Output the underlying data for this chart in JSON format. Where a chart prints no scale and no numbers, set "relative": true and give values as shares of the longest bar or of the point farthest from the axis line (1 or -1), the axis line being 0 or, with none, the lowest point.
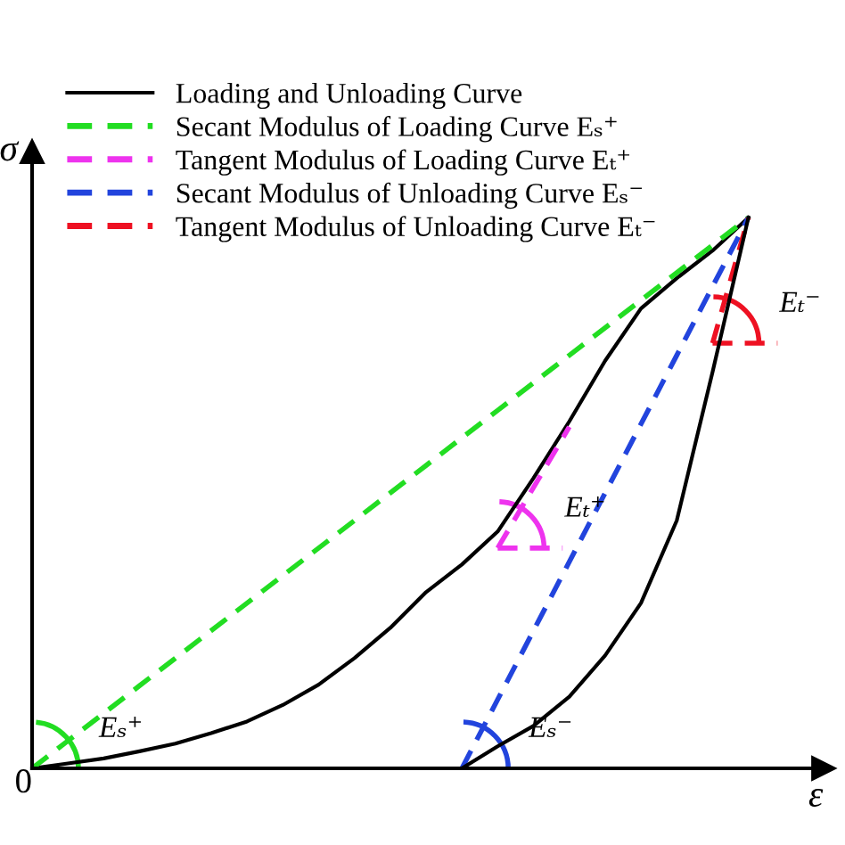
{
  "chart_data": {
    "type": "line",
    "relative": true,
    "xlabel": "ε",
    "ylabel": "σ",
    "legend": "top left",
    "marker": "none",
    "categories": [
      null,
      null,
      null,
      null,
      null,
      null,
      null,
      null,
      null,
      null,
      null,
      null,
      null,
      null,
      null,
      null,
      null,
      null,
      null,
      null,
      null
    ],
    "series": [
      {
        "name": "Loading and Unloading Curve",
        "color": "#000000",
        "line_style": "solid",
        "values": [
          0,
          0.009,
          0.018,
          0.031,
          0.045,
          0.064,
          0.085,
          0.115,
          0.152,
          0.2,
          0.255,
          0.32,
          0.37,
          0.43,
          0.527,
          0.63,
          0.74,
          0.835,
          0.89,
          0.94,
          1
        ]
      },
      {
        "name": "Secant Modulus of Loading Curve Eₛ⁺",
        "color": "#22dd22",
        "line_style": "dashed",
        "values": [
          0,
          0.05,
          0.1,
          0.15,
          0.2,
          0.25,
          0.3,
          0.35,
          0.4,
          0.45,
          0.5,
          0.55,
          0.6,
          0.65,
          0.7,
          0.75,
          0.8,
          0.85,
          0.9,
          0.95,
          1
        ]
      },
      {
        "name": "Tangent Modulus of Loading Curve Eₜ⁺",
        "color": "#ee33ee",
        "line_style": "dashed",
        "values": [
          null,
          null,
          null,
          null,
          null,
          null,
          null,
          null,
          null,
          null,
          null,
          null,
          null,
          0.4,
          0.51,
          0.62,
          null,
          null,
          null,
          null,
          null
        ]
      },
      {
        "name": "Secant Modulus of Unloading Curve Eₛ⁻",
        "color": "#2244dd",
        "line_style": "dashed",
        "values": [
          null,
          null,
          null,
          null,
          null,
          null,
          null,
          null,
          null,
          null,
          null,
          null,
          0,
          0.125,
          0.25,
          0.375,
          0.5,
          0.625,
          0.75,
          0.875,
          1
        ]
      },
      {
        "name": "Tangent Modulus of Unloading Curve Eₜ⁻",
        "color": "#ee1122",
        "line_style": "dashed",
        "values": [
          null,
          null,
          null,
          null,
          null,
          null,
          null,
          null,
          null,
          null,
          null,
          null,
          null,
          null,
          null,
          null,
          null,
          null,
          null,
          0.772,
          1
        ]
      },
      {
        "color": "#000000",
        "line_style": "solid",
        "values": [
          null,
          null,
          null,
          null,
          null,
          null,
          null,
          null,
          null,
          null,
          null,
          null,
          0,
          0.04,
          0.077,
          0.13,
          0.205,
          0.3,
          0.45,
          0.72,
          1
        ]
      }
    ],
    "annotations": [
      "0",
      "Eₛ⁺",
      "Eₜ⁺",
      "Eₛ⁻",
      "Eₜ⁻"
    ]
  }
}
